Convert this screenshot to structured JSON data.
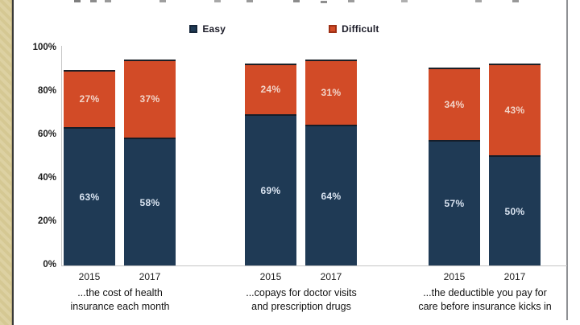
{
  "chart_data": {
    "type": "bar",
    "variant": "stacked",
    "title": "",
    "legend": [
      "Easy",
      "Difficult"
    ],
    "legend_position": "top",
    "grid": false,
    "y_ticks": [
      "100%",
      "80%",
      "60%",
      "40%",
      "20%",
      "0%"
    ],
    "ylim": [
      0,
      100
    ],
    "series_colors": {
      "easy": "#1f3a55",
      "difficult": "#d24b27"
    },
    "groups": [
      {
        "category_lines": [
          "...the cost of health",
          "insurance each month"
        ],
        "bars": [
          {
            "year": "2015",
            "easy": 63,
            "difficult": 27
          },
          {
            "year": "2017",
            "easy": 58,
            "difficult": 37
          }
        ]
      },
      {
        "category_lines": [
          "...copays for doctor visits",
          "and prescription drugs"
        ],
        "bars": [
          {
            "year": "2015",
            "easy": 69,
            "difficult": 24
          },
          {
            "year": "2017",
            "easy": 64,
            "difficult": 31
          }
        ]
      },
      {
        "category_lines": [
          "...the deductible you pay for",
          "care before insurance kicks in"
        ],
        "bars": [
          {
            "year": "2015",
            "easy": 57,
            "difficult": 34
          },
          {
            "year": "2017",
            "easy": 50,
            "difficult": 43
          }
        ]
      }
    ]
  }
}
